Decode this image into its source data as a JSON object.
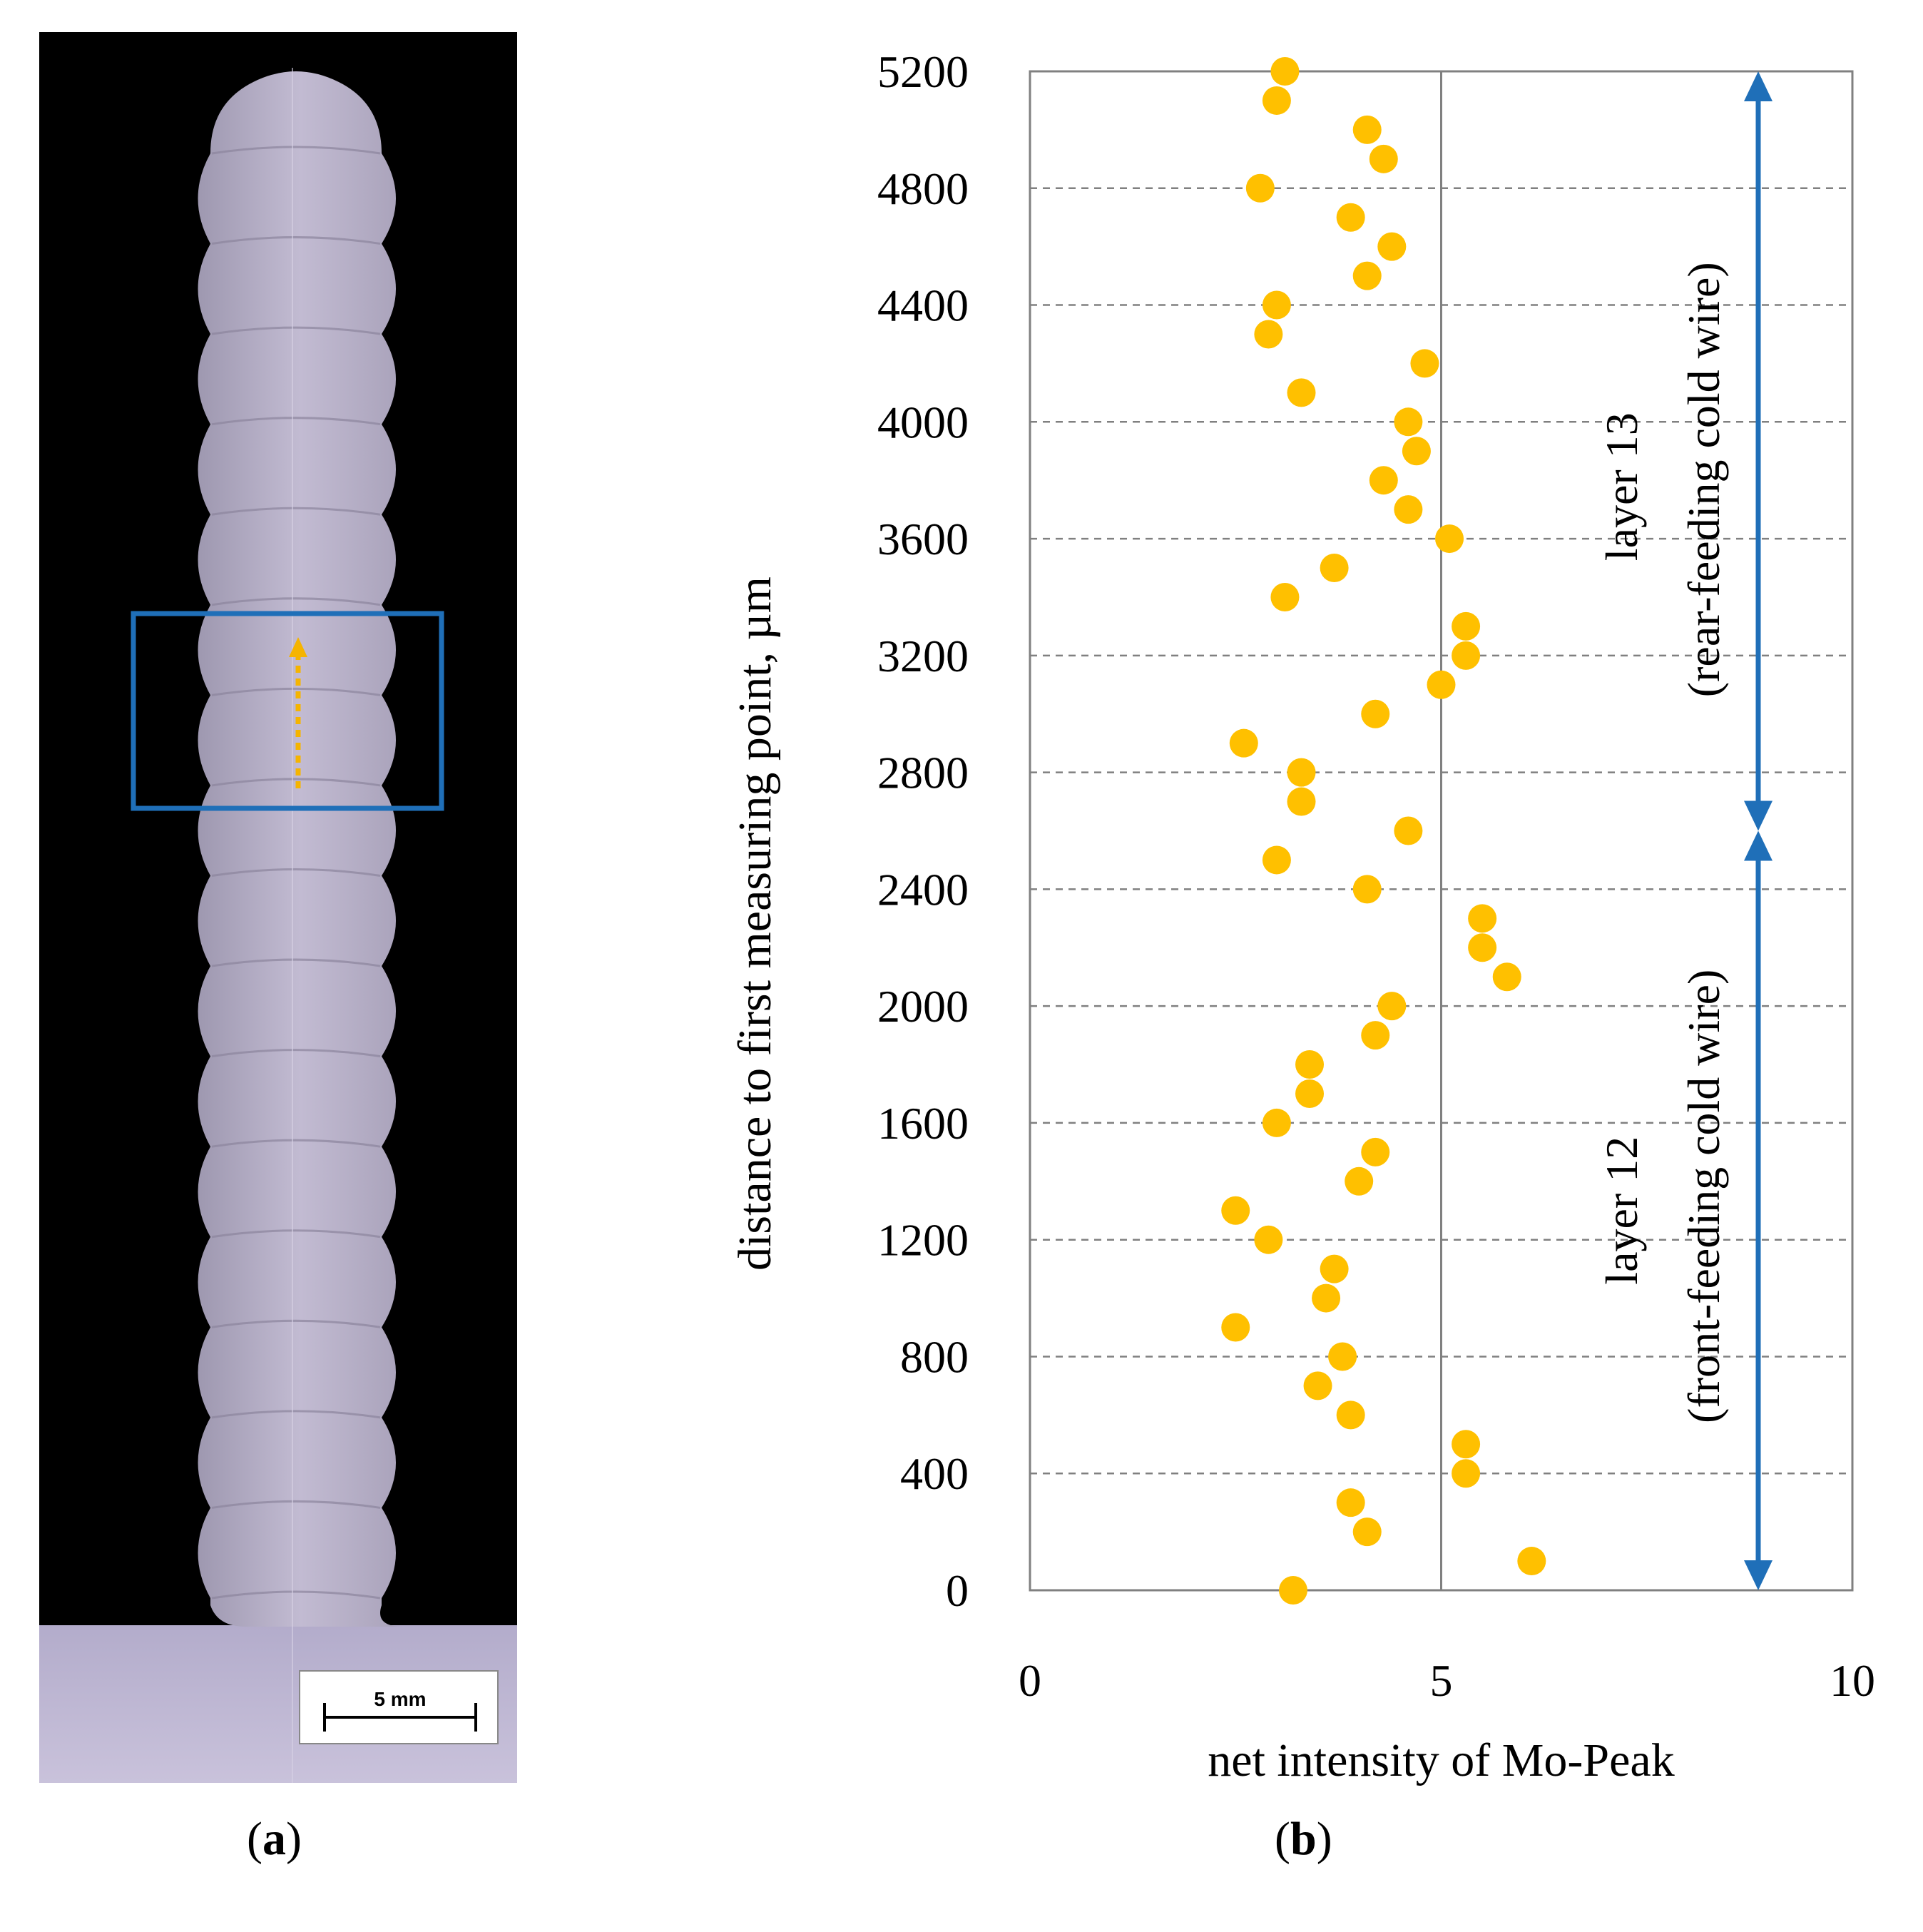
{
  "panels": {
    "a_label_letter": "a",
    "b_label_letter": "b",
    "a_label_open": "(",
    "a_label_close": ")",
    "b_label_open": "(",
    "b_label_close": ")"
  },
  "micrograph": {
    "scale_bar_label": "5 mm",
    "colors": {
      "background": "#000000",
      "specimen": "#b7b0c8",
      "roi_box": "#1f6fb8",
      "scan_arrow": "#f5b400"
    }
  },
  "chart_data": {
    "type": "scatter",
    "xlabel": "net intensity of Mo-Peak",
    "ylabel": "distance to first measuring point, µm",
    "xlim": [
      0,
      10
    ],
    "ylim": [
      0,
      5200
    ],
    "x_ticks": [
      "0",
      "5",
      "10"
    ],
    "y_ticks": [
      "0",
      "400",
      "800",
      "1200",
      "1600",
      "2000",
      "2400",
      "2800",
      "3200",
      "3600",
      "4000",
      "4400",
      "4800",
      "5200"
    ],
    "grid": "horizontal dashed at y ticks; vertical solid at x = 5",
    "marker_color": "#ffc000",
    "series": [
      {
        "points": [
          {
            "x": 3.2,
            "y": 0
          },
          {
            "x": 6.1,
            "y": 100
          },
          {
            "x": 4.1,
            "y": 200
          },
          {
            "x": 3.9,
            "y": 300
          },
          {
            "x": 5.3,
            "y": 400
          },
          {
            "x": 5.3,
            "y": 500
          },
          {
            "x": 3.9,
            "y": 600
          },
          {
            "x": 3.5,
            "y": 700
          },
          {
            "x": 3.8,
            "y": 800
          },
          {
            "x": 2.5,
            "y": 900
          },
          {
            "x": 3.6,
            "y": 1000
          },
          {
            "x": 3.7,
            "y": 1100
          },
          {
            "x": 2.9,
            "y": 1200
          },
          {
            "x": 2.5,
            "y": 1300
          },
          {
            "x": 4.0,
            "y": 1400
          },
          {
            "x": 4.2,
            "y": 1500
          },
          {
            "x": 3.0,
            "y": 1600
          },
          {
            "x": 3.4,
            "y": 1700
          },
          {
            "x": 3.4,
            "y": 1800
          },
          {
            "x": 4.2,
            "y": 1900
          },
          {
            "x": 4.4,
            "y": 2000
          },
          {
            "x": 5.8,
            "y": 2100
          },
          {
            "x": 5.5,
            "y": 2200
          },
          {
            "x": 5.5,
            "y": 2300
          },
          {
            "x": 4.1,
            "y": 2400
          },
          {
            "x": 3.0,
            "y": 2500
          },
          {
            "x": 4.6,
            "y": 2600
          },
          {
            "x": 3.3,
            "y": 2700
          },
          {
            "x": 3.3,
            "y": 2800
          },
          {
            "x": 2.6,
            "y": 2900
          },
          {
            "x": 4.2,
            "y": 3000
          },
          {
            "x": 5.0,
            "y": 3100
          },
          {
            "x": 5.3,
            "y": 3200
          },
          {
            "x": 5.3,
            "y": 3300
          },
          {
            "x": 3.1,
            "y": 3400
          },
          {
            "x": 3.7,
            "y": 3500
          },
          {
            "x": 5.1,
            "y": 3600
          },
          {
            "x": 4.6,
            "y": 3700
          },
          {
            "x": 4.3,
            "y": 3800
          },
          {
            "x": 4.7,
            "y": 3900
          },
          {
            "x": 4.6,
            "y": 4000
          },
          {
            "x": 3.3,
            "y": 4100
          },
          {
            "x": 4.8,
            "y": 4200
          },
          {
            "x": 2.9,
            "y": 4300
          },
          {
            "x": 3.0,
            "y": 4400
          },
          {
            "x": 4.1,
            "y": 4500
          },
          {
            "x": 4.4,
            "y": 4600
          },
          {
            "x": 3.9,
            "y": 4700
          },
          {
            "x": 2.8,
            "y": 4800
          },
          {
            "x": 4.3,
            "y": 4900
          },
          {
            "x": 4.1,
            "y": 5000
          },
          {
            "x": 3.0,
            "y": 5100
          },
          {
            "x": 3.1,
            "y": 5200
          }
        ]
      }
    ],
    "annotations": {
      "arrow_color": "#1f6fb8",
      "layer13": {
        "line1": "layer 13",
        "line2": "(rear-feeding cold wire)",
        "y_from": 2600,
        "y_to": 5200
      },
      "layer12": {
        "line1": "layer 12",
        "line2": "(front-feeding cold wire)",
        "y_from": 0,
        "y_to": 2600
      }
    }
  }
}
